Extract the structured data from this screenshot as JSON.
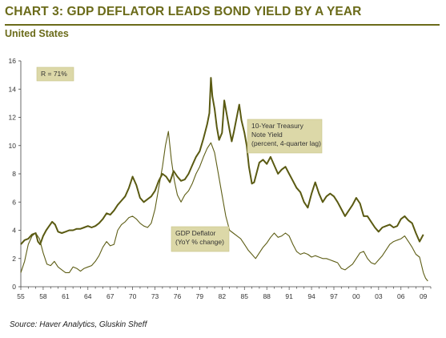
{
  "header": {
    "title": "CHART 3: GDP DEFLATOR LEADS BOND YIELD BY A YEAR",
    "subtitle": "United States"
  },
  "footer": {
    "source": "Source: Haver Analytics, Gluskin Sheff"
  },
  "colors": {
    "accent": "#6b6b1a",
    "treasury_line": "#5a5a12",
    "deflator_line": "#5e5e16",
    "label_fill": "#dcd8a8"
  },
  "chart_data": {
    "type": "line",
    "title": "CHART 3: GDP DEFLATOR LEADS BOND YIELD BY A YEAR",
    "subtitle": "United States",
    "xlabel": "",
    "ylabel": "",
    "xlim": [
      1955,
      2010
    ],
    "ylim": [
      0,
      16
    ],
    "grid": false,
    "x_ticks": [
      "55",
      "58",
      "61",
      "64",
      "67",
      "70",
      "73",
      "76",
      "79",
      "82",
      "85",
      "88",
      "91",
      "94",
      "97",
      "00",
      "03",
      "06",
      "09"
    ],
    "y_ticks": [
      "0",
      "2",
      "4",
      "6",
      "8",
      "10",
      "12",
      "14",
      "16"
    ],
    "annotations": {
      "correlation": "R = 71%",
      "treasury": [
        "10-Year Treasury",
        "Note Yield",
        "(percent, 4-quarter lag)"
      ],
      "deflator": [
        "GDP Deflator",
        "(YoY % change)"
      ]
    },
    "series": [
      {
        "name": "10-Year Treasury Note Yield (percent, 4-quarter lag)",
        "x": [
          1955.0,
          1955.5,
          1956.0,
          1956.5,
          1957.0,
          1957.3,
          1957.6,
          1958.0,
          1958.4,
          1958.8,
          1959.2,
          1959.6,
          1960.0,
          1960.5,
          1961.0,
          1961.5,
          1962.0,
          1962.5,
          1963.0,
          1963.5,
          1964.0,
          1964.5,
          1965.0,
          1965.5,
          1966.0,
          1966.5,
          1967.0,
          1967.5,
          1968.0,
          1968.5,
          1969.0,
          1969.5,
          1970.0,
          1970.5,
          1971.0,
          1971.5,
          1972.0,
          1972.5,
          1973.0,
          1973.5,
          1974.0,
          1974.5,
          1975.0,
          1975.5,
          1976.0,
          1976.5,
          1977.0,
          1977.5,
          1978.0,
          1978.5,
          1979.0,
          1979.5,
          1980.0,
          1980.3,
          1980.5,
          1980.7,
          1981.0,
          1981.3,
          1981.6,
          1982.0,
          1982.3,
          1982.6,
          1983.0,
          1983.3,
          1983.6,
          1984.0,
          1984.3,
          1984.6,
          1985.0,
          1985.3,
          1985.6,
          1986.0,
          1986.3,
          1986.6,
          1987.0,
          1987.5,
          1988.0,
          1988.5,
          1989.0,
          1989.5,
          1990.0,
          1990.5,
          1991.0,
          1991.5,
          1992.0,
          1992.5,
          1993.0,
          1993.5,
          1994.0,
          1994.5,
          1995.0,
          1995.5,
          1996.0,
          1996.5,
          1997.0,
          1997.5,
          1998.0,
          1998.5,
          1999.0,
          1999.5,
          2000.0,
          2000.5,
          2001.0,
          2001.5,
          2002.0,
          2002.5,
          2003.0,
          2003.5,
          2004.0,
          2004.5,
          2005.0,
          2005.5,
          2006.0,
          2006.5,
          2007.0,
          2007.5,
          2008.0,
          2008.5,
          2009.0
        ],
        "values": [
          3.0,
          3.3,
          3.4,
          3.7,
          3.8,
          3.2,
          3.0,
          3.6,
          4.0,
          4.3,
          4.6,
          4.4,
          3.9,
          3.8,
          3.9,
          4.0,
          4.0,
          4.1,
          4.1,
          4.2,
          4.3,
          4.2,
          4.3,
          4.5,
          4.8,
          5.2,
          5.1,
          5.4,
          5.8,
          6.1,
          6.4,
          7.0,
          7.8,
          7.2,
          6.3,
          6.0,
          6.2,
          6.4,
          6.8,
          7.5,
          8.0,
          7.8,
          7.4,
          8.2,
          7.8,
          7.5,
          7.6,
          8.0,
          8.6,
          9.2,
          9.6,
          10.5,
          11.5,
          12.3,
          14.8,
          13.5,
          12.6,
          11.3,
          10.4,
          10.9,
          13.2,
          12.3,
          11.1,
          10.3,
          11.0,
          12.1,
          12.9,
          11.8,
          10.9,
          10.0,
          8.5,
          7.3,
          7.4,
          8.0,
          8.8,
          9.0,
          8.7,
          9.2,
          8.6,
          8.0,
          8.3,
          8.5,
          8.0,
          7.5,
          7.0,
          6.7,
          6.0,
          5.6,
          6.6,
          7.4,
          6.6,
          6.0,
          6.4,
          6.6,
          6.4,
          6.0,
          5.5,
          5.0,
          5.4,
          5.8,
          6.3,
          5.9,
          5.0,
          5.0,
          4.6,
          4.2,
          3.9,
          4.2,
          4.3,
          4.4,
          4.2,
          4.3,
          4.8,
          5.0,
          4.7,
          4.5,
          3.8,
          3.2,
          3.7
        ]
      },
      {
        "name": "GDP Deflator (YoY % change)",
        "x": [
          1955.0,
          1955.5,
          1956.0,
          1956.5,
          1957.0,
          1957.5,
          1958.0,
          1958.5,
          1959.0,
          1959.5,
          1960.0,
          1960.5,
          1961.0,
          1961.5,
          1962.0,
          1962.5,
          1963.0,
          1963.5,
          1964.0,
          1964.5,
          1965.0,
          1965.5,
          1966.0,
          1966.5,
          1967.0,
          1967.5,
          1968.0,
          1968.5,
          1969.0,
          1969.5,
          1970.0,
          1970.5,
          1971.0,
          1971.5,
          1972.0,
          1972.5,
          1973.0,
          1973.5,
          1974.0,
          1974.4,
          1974.8,
          1975.2,
          1975.6,
          1976.0,
          1976.5,
          1977.0,
          1977.5,
          1978.0,
          1978.5,
          1979.0,
          1979.5,
          1980.0,
          1980.5,
          1981.0,
          1981.5,
          1982.0,
          1982.5,
          1983.0,
          1983.5,
          1984.0,
          1984.5,
          1985.0,
          1985.5,
          1986.0,
          1986.5,
          1987.0,
          1987.5,
          1988.0,
          1988.5,
          1989.0,
          1989.5,
          1990.0,
          1990.5,
          1991.0,
          1991.5,
          1992.0,
          1992.5,
          1993.0,
          1993.5,
          1994.0,
          1994.5,
          1995.0,
          1995.5,
          1996.0,
          1996.5,
          1997.0,
          1997.5,
          1998.0,
          1998.5,
          1999.0,
          1999.5,
          2000.0,
          2000.5,
          2001.0,
          2001.5,
          2002.0,
          2002.5,
          2003.0,
          2003.5,
          2004.0,
          2004.5,
          2005.0,
          2005.5,
          2006.0,
          2006.5,
          2007.0,
          2007.5,
          2008.0,
          2008.5,
          2009.0,
          2009.3,
          2009.6
        ],
        "values": [
          1.0,
          1.8,
          3.0,
          3.6,
          3.8,
          3.4,
          2.4,
          1.6,
          1.5,
          1.8,
          1.4,
          1.2,
          1.0,
          1.0,
          1.4,
          1.3,
          1.1,
          1.3,
          1.4,
          1.5,
          1.8,
          2.2,
          2.8,
          3.2,
          2.9,
          3.0,
          4.0,
          4.4,
          4.6,
          4.9,
          5.0,
          4.8,
          4.5,
          4.3,
          4.2,
          4.5,
          5.5,
          7.0,
          8.5,
          10.0,
          11.0,
          9.0,
          7.5,
          6.5,
          6.0,
          6.5,
          6.8,
          7.3,
          8.0,
          8.5,
          9.2,
          9.8,
          10.2,
          9.5,
          8.0,
          6.5,
          5.0,
          4.0,
          3.8,
          3.6,
          3.4,
          3.0,
          2.6,
          2.3,
          2.0,
          2.4,
          2.8,
          3.1,
          3.5,
          3.8,
          3.5,
          3.6,
          3.8,
          3.6,
          3.0,
          2.5,
          2.3,
          2.4,
          2.3,
          2.1,
          2.2,
          2.1,
          2.0,
          2.0,
          1.9,
          1.8,
          1.7,
          1.3,
          1.2,
          1.4,
          1.6,
          2.0,
          2.4,
          2.5,
          2.0,
          1.7,
          1.6,
          1.9,
          2.2,
          2.6,
          3.0,
          3.2,
          3.3,
          3.4,
          3.6,
          3.2,
          2.8,
          2.3,
          2.1,
          1.0,
          0.6,
          0.4
        ]
      }
    ]
  }
}
